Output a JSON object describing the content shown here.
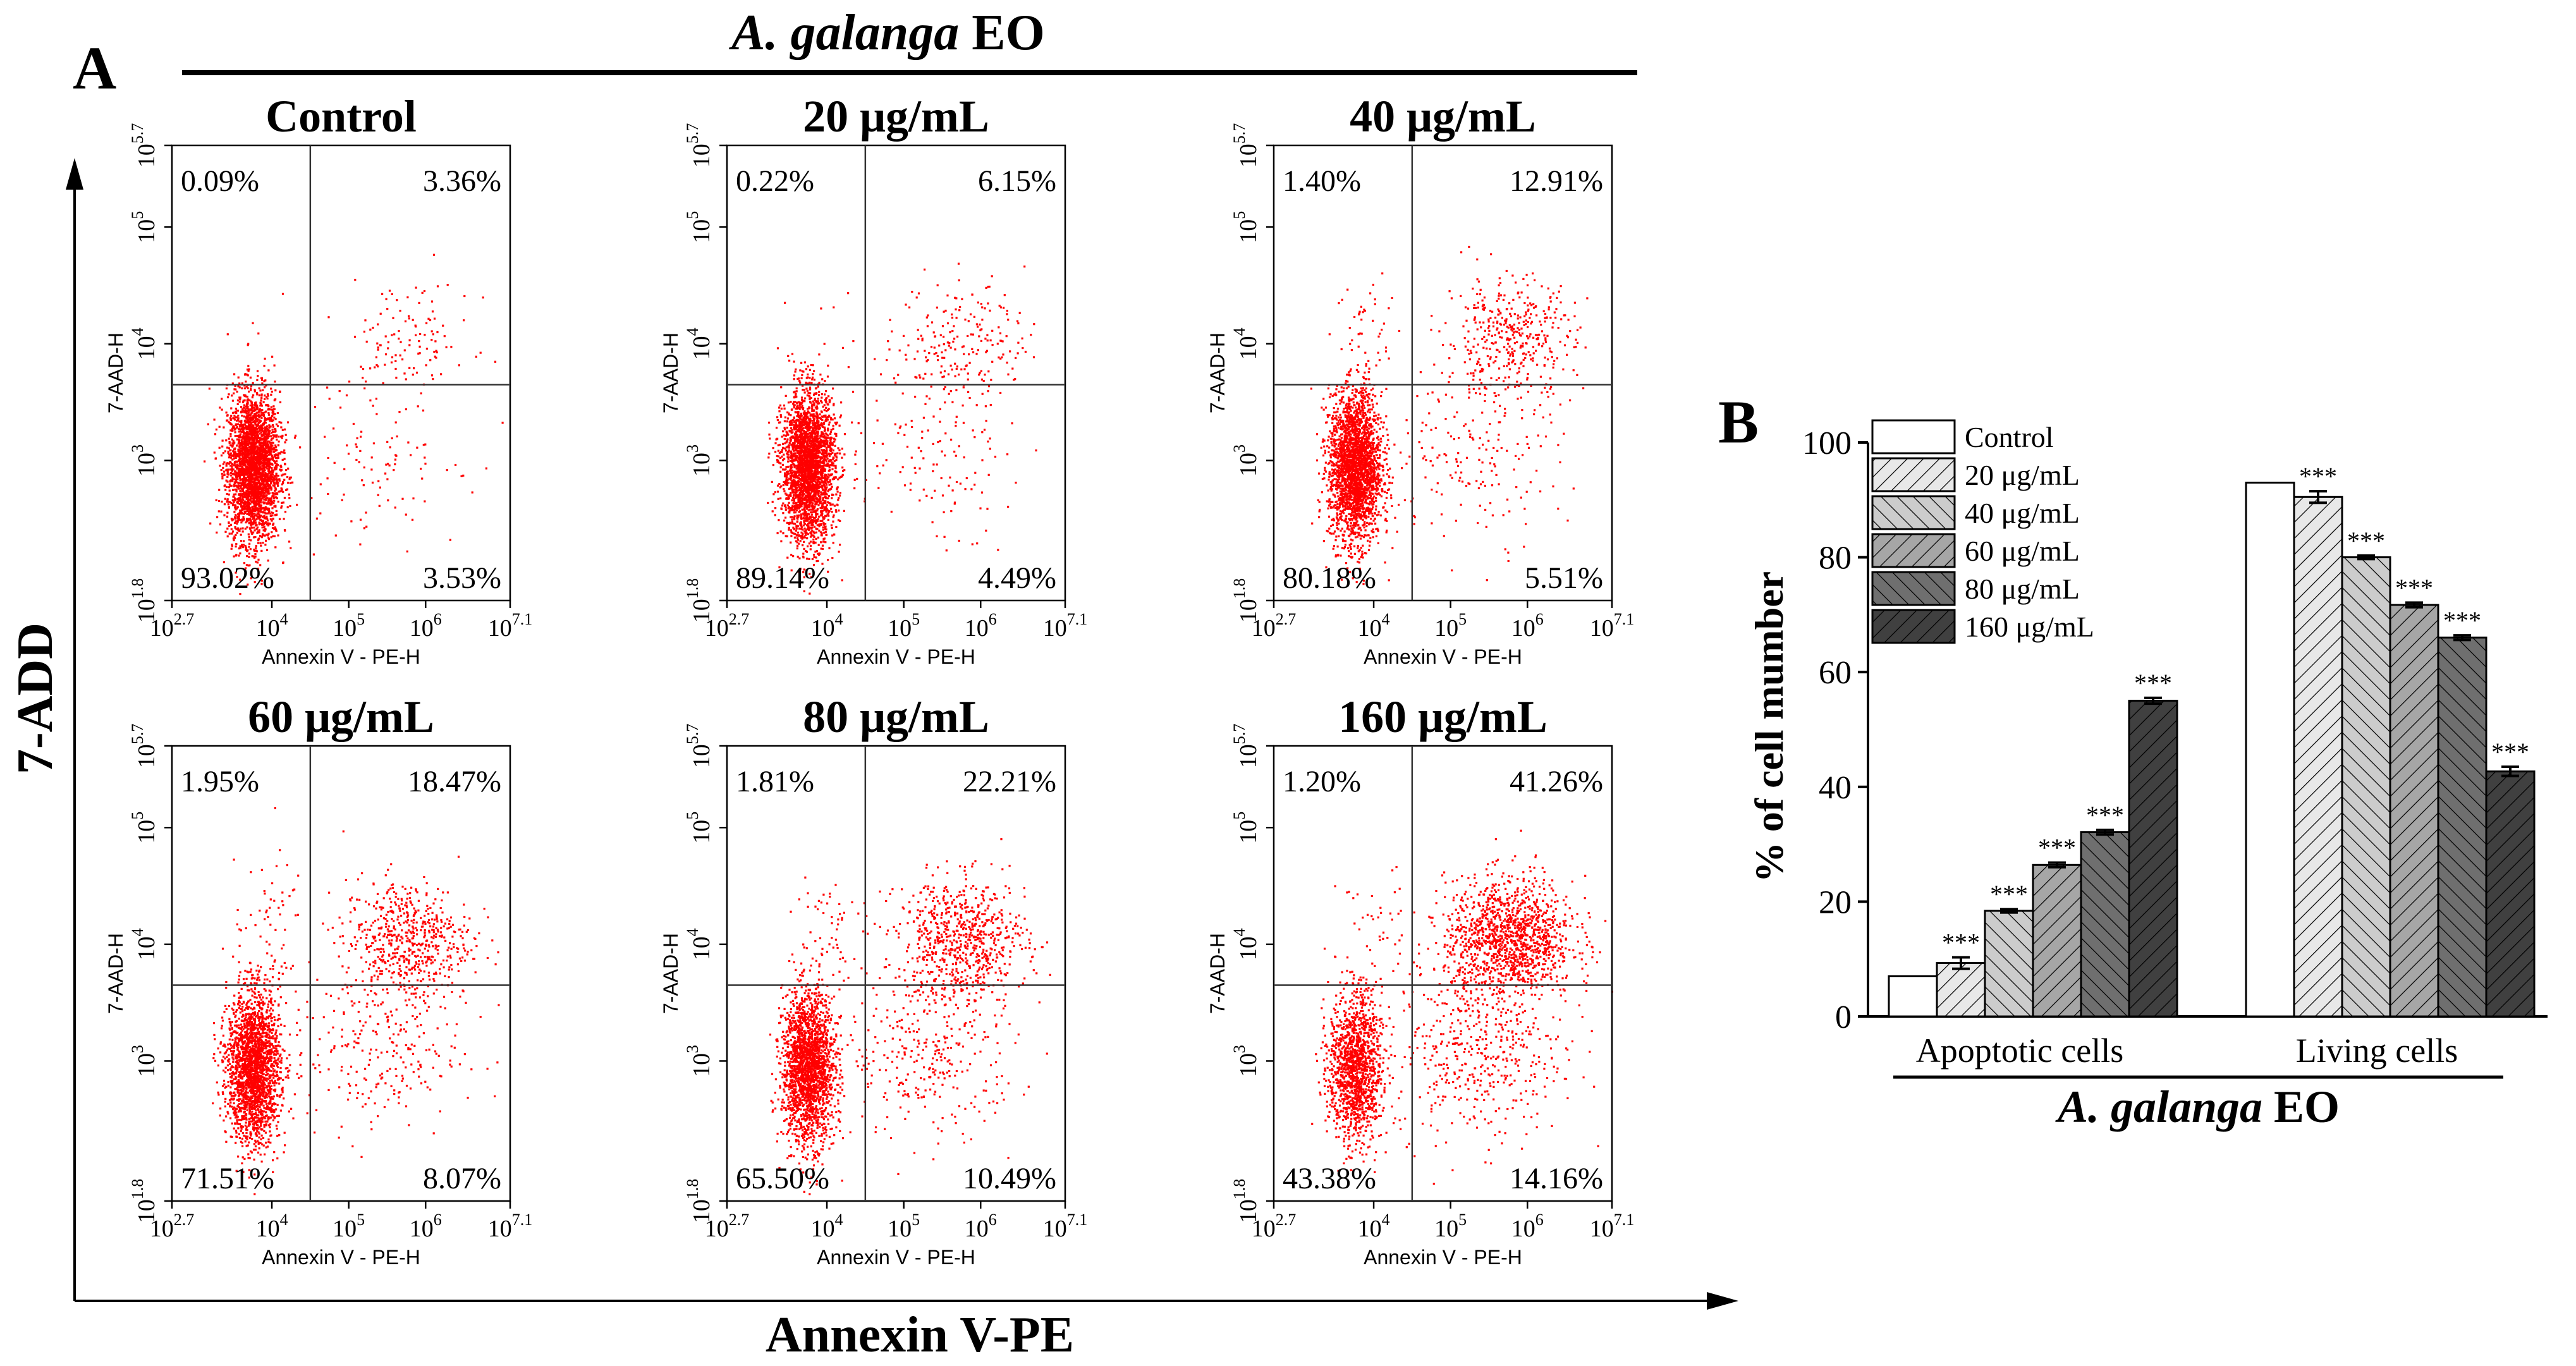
{
  "figure": {
    "panel_a_label": "A",
    "panel_b_label": "B",
    "header_italic": "A. galanga",
    "header_suffix": " EO",
    "y_axis_big": "7-ADD",
    "x_axis_big": "Annexin V-PE"
  },
  "chart_data": [
    {
      "type": "scatter",
      "kind": "flow-cytometry-quadrant-plots",
      "x_label": "Annexin V - PE-H",
      "y_label": "7-AAD-H",
      "x_ticks": [
        {
          "base": "10",
          "exp": "2.7"
        },
        {
          "base": "10",
          "exp": "4"
        },
        {
          "base": "10",
          "exp": "5"
        },
        {
          "base": "10",
          "exp": "6"
        },
        {
          "base": "10",
          "exp": "7.1"
        }
      ],
      "y_ticks": [
        {
          "base": "10",
          "exp": "1.8"
        },
        {
          "base": "10",
          "exp": "3"
        },
        {
          "base": "10",
          "exp": "4"
        },
        {
          "base": "10",
          "exp": "5"
        },
        {
          "base": "10",
          "exp": "5.7"
        }
      ],
      "x_log_range": [
        2.7,
        7.1
      ],
      "y_log_range": [
        1.8,
        5.7
      ],
      "gate_log": {
        "x": 4.5,
        "y": 3.65
      },
      "color": "#ff0000",
      "plots": [
        {
          "title": "Control",
          "ul": "0.09%",
          "ur": "3.36%",
          "ll": "93.02%",
          "lr": "3.53%"
        },
        {
          "title": "20 μg/mL",
          "ul": "0.22%",
          "ur": "6.15%",
          "ll": "89.14%",
          "lr": "4.49%"
        },
        {
          "title": "40 μg/mL",
          "ul": "1.40%",
          "ur": "12.91%",
          "ll": "80.18%",
          "lr": "5.51%"
        },
        {
          "title": "60 μg/mL",
          "ul": "1.95%",
          "ur": "18.47%",
          "ll": "71.51%",
          "lr": "8.07%"
        },
        {
          "title": "80 μg/mL",
          "ul": "1.81%",
          "ur": "22.21%",
          "ll": "65.50%",
          "lr": "10.49%"
        },
        {
          "title": "160 μg/mL",
          "ul": "1.20%",
          "ur": "41.26%",
          "ll": "43.38%",
          "lr": "14.16%"
        }
      ]
    },
    {
      "type": "bar",
      "ylabel": "% of cell mumber",
      "xlabel_italic": "A. galanga",
      "xlabel_suffix": " EO",
      "ylim": [
        0,
        100
      ],
      "yticks": [
        "0",
        "20",
        "40",
        "60",
        "80",
        "100"
      ],
      "categories": [
        "Apoptotic cells",
        "Living cells"
      ],
      "significance": "***",
      "series": [
        {
          "name": "Control",
          "values": [
            7.0,
            93.0
          ],
          "errors": [
            0.0,
            0.0
          ],
          "sig": [
            false,
            false
          ],
          "fill": "#ffffff",
          "hatch": "none"
        },
        {
          "name": "20 μg/mL",
          "values": [
            9.3,
            90.5
          ],
          "errors": [
            1.0,
            1.0
          ],
          "sig": [
            true,
            true
          ],
          "fill": "#e8e8e8",
          "hatch": "fwd"
        },
        {
          "name": "40 μg/mL",
          "values": [
            18.4,
            80.0
          ],
          "errors": [
            0.3,
            0.3
          ],
          "sig": [
            true,
            true
          ],
          "fill": "#cccccc",
          "hatch": "back"
        },
        {
          "name": "60 μg/mL",
          "values": [
            26.4,
            71.7
          ],
          "errors": [
            0.4,
            0.4
          ],
          "sig": [
            true,
            true
          ],
          "fill": "#a6a6a6",
          "hatch": "fwd"
        },
        {
          "name": "80 μg/mL",
          "values": [
            32.1,
            66.0
          ],
          "errors": [
            0.4,
            0.4
          ],
          "sig": [
            true,
            true
          ],
          "fill": "#6f6f6f",
          "hatch": "back"
        },
        {
          "name": "160 μg/mL",
          "values": [
            55.0,
            42.7
          ],
          "errors": [
            0.5,
            0.8
          ],
          "sig": [
            true,
            true
          ],
          "fill": "#404040",
          "hatch": "fwd"
        }
      ]
    }
  ]
}
